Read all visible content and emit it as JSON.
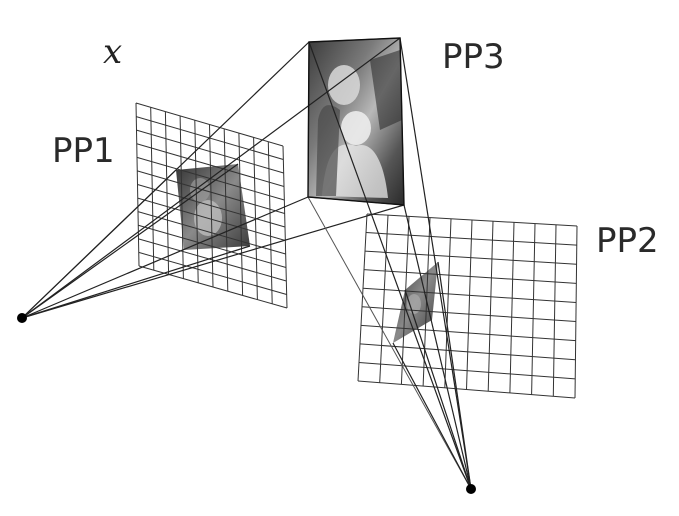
{
  "labels": {
    "x": "x",
    "pp1": "PP1",
    "pp2": "PP2",
    "pp3": "PP3"
  },
  "colors": {
    "stroke": "#222222",
    "photo_dark": "#2b2b2b",
    "photo_mid": "#6a6a6a",
    "background": "#ffffff"
  }
}
